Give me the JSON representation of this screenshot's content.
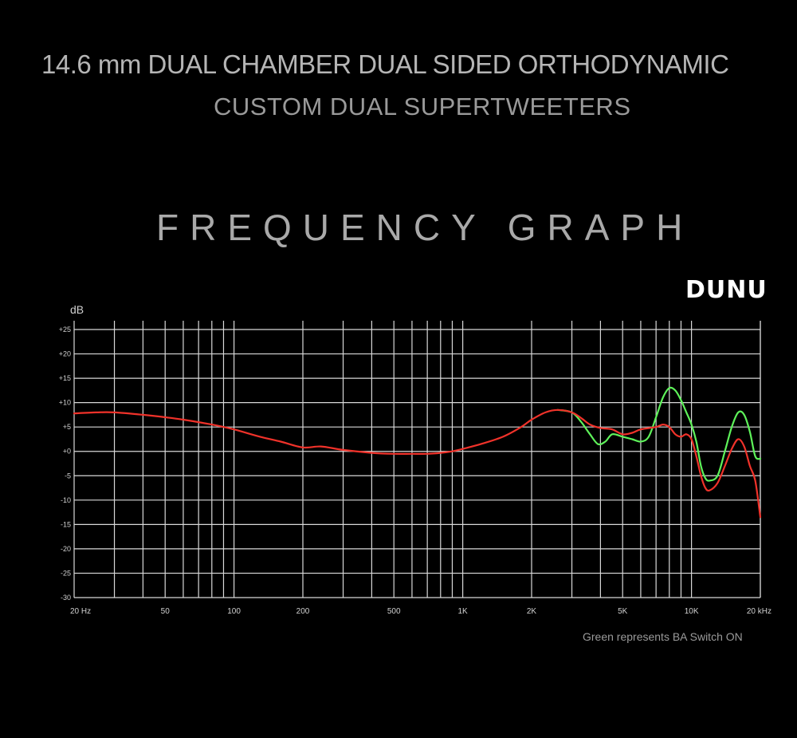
{
  "header": {
    "line1": "14.6 mm DUAL CHAMBER DUAL SIDED ORTHODYNAMIC",
    "line2": "CUSTOM DUAL SUPERTWEETERS"
  },
  "graph_title": "FREQUENCY GRAPH",
  "logo_text": "DUNU",
  "note": "Green represents BA Switch ON",
  "chart_data": {
    "type": "line",
    "ylabel": "dB",
    "xscale": "log",
    "xlim": [
      20,
      20000
    ],
    "ylim": [
      -30,
      25
    ],
    "grid": true,
    "x_ticks": [
      {
        "value": 20,
        "label": "20 Hz"
      },
      {
        "value": 50,
        "label": "50"
      },
      {
        "value": 100,
        "label": "100"
      },
      {
        "value": 200,
        "label": "200"
      },
      {
        "value": 500,
        "label": "500"
      },
      {
        "value": 1000,
        "label": "1K"
      },
      {
        "value": 2000,
        "label": "2K"
      },
      {
        "value": 5000,
        "label": "5K"
      },
      {
        "value": 10000,
        "label": "10K"
      },
      {
        "value": 20000,
        "label": "20 kHz"
      }
    ],
    "y_ticks": [
      {
        "value": 25,
        "label": "+25"
      },
      {
        "value": 20,
        "label": "+20"
      },
      {
        "value": 15,
        "label": "+15"
      },
      {
        "value": 10,
        "label": "+10"
      },
      {
        "value": 5,
        "label": "+5"
      },
      {
        "value": 0,
        "label": "+0"
      },
      {
        "value": -5,
        "label": "-5"
      },
      {
        "value": -10,
        "label": "-10"
      },
      {
        "value": -15,
        "label": "-15"
      },
      {
        "value": -20,
        "label": "-20"
      },
      {
        "value": -25,
        "label": "-25"
      },
      {
        "value": -30,
        "label": "-30"
      }
    ],
    "series": [
      {
        "color": "#5ef25a",
        "points": [
          [
            2600,
            8.5
          ],
          [
            3000,
            8.0
          ],
          [
            3300,
            6.0
          ],
          [
            3600,
            3.5
          ],
          [
            3900,
            1.5
          ],
          [
            4200,
            2.0
          ],
          [
            4500,
            3.5
          ],
          [
            5000,
            3.0
          ],
          [
            5500,
            2.5
          ],
          [
            6000,
            2.0
          ],
          [
            6500,
            3.0
          ],
          [
            7000,
            7.0
          ],
          [
            7500,
            11.0
          ],
          [
            8000,
            13.0
          ],
          [
            8500,
            12.5
          ],
          [
            9000,
            10.5
          ],
          [
            9500,
            8.0
          ],
          [
            10000,
            5.5
          ],
          [
            10500,
            2.0
          ],
          [
            11000,
            -3.0
          ],
          [
            11500,
            -5.5
          ],
          [
            12000,
            -6.0
          ],
          [
            13000,
            -5.0
          ],
          [
            14000,
            0.0
          ],
          [
            15000,
            5.0
          ],
          [
            16000,
            8.0
          ],
          [
            17000,
            7.5
          ],
          [
            18000,
            4.0
          ],
          [
            19000,
            -1.0
          ],
          [
            20000,
            -1.5
          ]
        ]
      },
      {
        "color": "#f0322a",
        "points": [
          [
            20,
            7.8
          ],
          [
            25,
            8.0
          ],
          [
            30,
            8.0
          ],
          [
            40,
            7.5
          ],
          [
            50,
            7.0
          ],
          [
            60,
            6.5
          ],
          [
            80,
            5.5
          ],
          [
            100,
            4.5
          ],
          [
            130,
            3.0
          ],
          [
            160,
            2.0
          ],
          [
            200,
            0.8
          ],
          [
            240,
            1.0
          ],
          [
            300,
            0.3
          ],
          [
            400,
            -0.3
          ],
          [
            500,
            -0.5
          ],
          [
            600,
            -0.5
          ],
          [
            700,
            -0.5
          ],
          [
            800,
            -0.3
          ],
          [
            900,
            0.0
          ],
          [
            1000,
            0.5
          ],
          [
            1200,
            1.5
          ],
          [
            1500,
            3.0
          ],
          [
            1800,
            5.0
          ],
          [
            2000,
            6.5
          ],
          [
            2300,
            8.0
          ],
          [
            2600,
            8.5
          ],
          [
            3000,
            8.0
          ],
          [
            3300,
            6.8
          ],
          [
            3600,
            5.5
          ],
          [
            4000,
            4.8
          ],
          [
            4500,
            4.5
          ],
          [
            5000,
            3.5
          ],
          [
            5500,
            3.8
          ],
          [
            6000,
            4.5
          ],
          [
            7000,
            5.0
          ],
          [
            7500,
            5.5
          ],
          [
            8000,
            5.0
          ],
          [
            8500,
            3.5
          ],
          [
            9000,
            3.0
          ],
          [
            9500,
            3.5
          ],
          [
            10000,
            2.5
          ],
          [
            10500,
            -1.0
          ],
          [
            11000,
            -5.0
          ],
          [
            11500,
            -7.5
          ],
          [
            12000,
            -8.0
          ],
          [
            13000,
            -6.5
          ],
          [
            14000,
            -3.0
          ],
          [
            15000,
            0.5
          ],
          [
            16000,
            2.5
          ],
          [
            17000,
            1.0
          ],
          [
            18000,
            -3.0
          ],
          [
            19000,
            -6.0
          ],
          [
            20000,
            -13.5
          ]
        ]
      }
    ]
  }
}
